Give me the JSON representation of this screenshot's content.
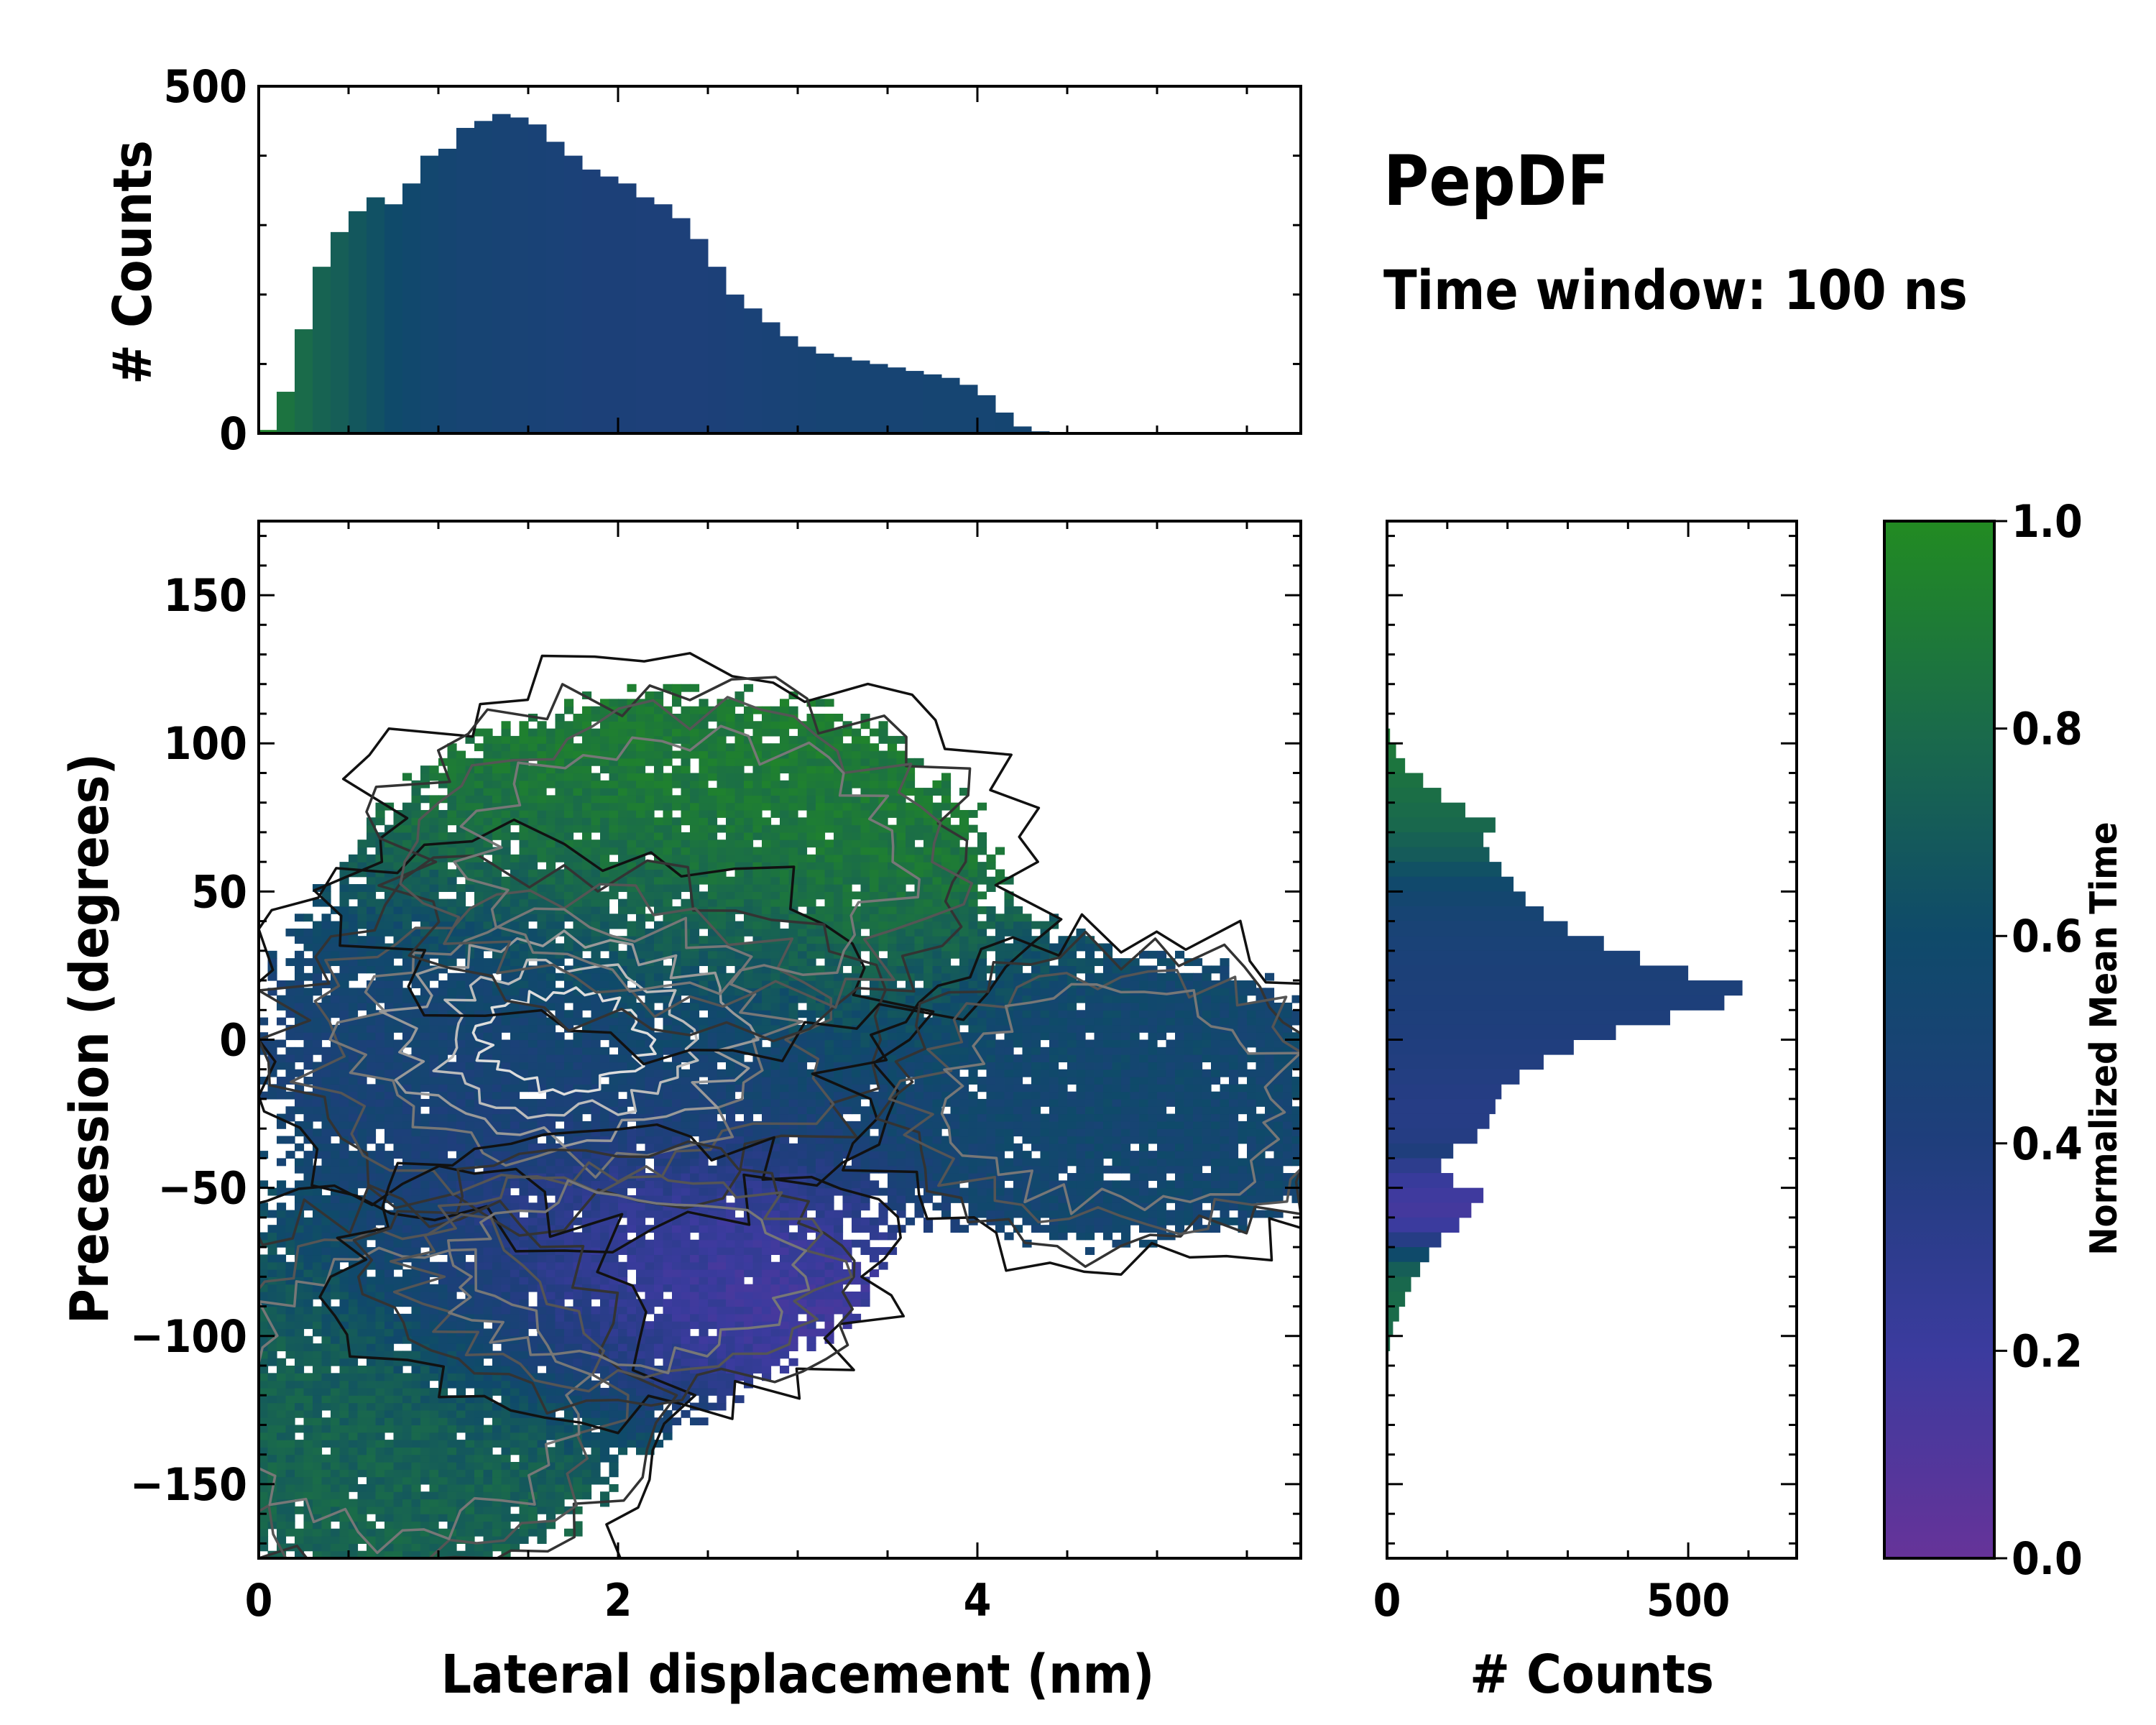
{
  "chart_data": {
    "type": "heatmap",
    "title": "PepDF",
    "subtitle": "Time window: 100 ns",
    "main": {
      "xlabel": "Lateral displacement (nm)",
      "ylabel": "Precession (degrees)",
      "xlim": [
        0,
        5.8
      ],
      "ylim": [
        -175,
        175
      ],
      "xticks": [
        0,
        2,
        4
      ],
      "xtick_labels": [
        "0",
        "2",
        "4"
      ],
      "yticks": [
        150,
        100,
        50,
        0,
        -50,
        -100,
        -150
      ],
      "ytick_labels": [
        "150",
        "100",
        "50",
        "0",
        "−50",
        "−100",
        "−150"
      ],
      "description_clusters": [
        {
          "x": 1.7,
          "y": 0,
          "spread_x": 1.0,
          "spread_y": 35,
          "time": 0.45
        },
        {
          "x": 2.4,
          "y": 60,
          "spread_x": 1.0,
          "spread_y": 35,
          "time": 0.9
        },
        {
          "x": 0.8,
          "y": -120,
          "spread_x": 0.8,
          "spread_y": 40,
          "time": 0.75
        },
        {
          "x": 2.0,
          "y": -80,
          "spread_x": 0.8,
          "spread_y": 25,
          "time": 0.15
        },
        {
          "x": 4.8,
          "y": -20,
          "spread_x": 0.8,
          "spread_y": 30,
          "time": 0.55
        }
      ]
    },
    "top_hist": {
      "ylabel": "# Counts",
      "ylim": [
        0,
        500
      ],
      "yticks": [
        0,
        500
      ],
      "ytick_labels": [
        "0",
        "500"
      ],
      "x_start": 0.0,
      "bin_width": 0.1,
      "values": [
        5,
        60,
        150,
        240,
        290,
        320,
        340,
        330,
        360,
        400,
        410,
        440,
        450,
        460,
        455,
        445,
        420,
        400,
        380,
        370,
        360,
        340,
        330,
        310,
        280,
        240,
        200,
        180,
        160,
        140,
        125,
        115,
        110,
        105,
        100,
        95,
        90,
        85,
        80,
        70,
        55,
        30,
        10,
        3
      ],
      "times": [
        0.95,
        0.85,
        0.8,
        0.75,
        0.72,
        0.68,
        0.64,
        0.6,
        0.57,
        0.55,
        0.52,
        0.5,
        0.5,
        0.49,
        0.48,
        0.47,
        0.46,
        0.45,
        0.44,
        0.44,
        0.44,
        0.43,
        0.43,
        0.43,
        0.43,
        0.44,
        0.45,
        0.46,
        0.47,
        0.48,
        0.49,
        0.5,
        0.5,
        0.5,
        0.5,
        0.5,
        0.5,
        0.51,
        0.51,
        0.51,
        0.51,
        0.52,
        0.52,
        0.52
      ]
    },
    "right_hist": {
      "xlabel": "# Counts",
      "xlim": [
        0,
        680
      ],
      "xticks": [
        0,
        500
      ],
      "xtick_labels": [
        "0",
        "500"
      ],
      "y_start": 105,
      "bin_width": -5,
      "values": [
        5,
        15,
        30,
        60,
        90,
        130,
        180,
        160,
        170,
        190,
        210,
        230,
        260,
        300,
        360,
        420,
        500,
        590,
        560,
        470,
        380,
        310,
        260,
        220,
        190,
        180,
        170,
        150,
        110,
        90,
        110,
        160,
        140,
        120,
        90,
        70,
        55,
        40,
        30,
        20,
        10,
        5,
        2,
        0,
        0,
        0,
        0,
        0,
        0,
        0,
        0,
        0,
        0,
        0,
        0
      ],
      "times": [
        0.9,
        0.88,
        0.86,
        0.84,
        0.82,
        0.8,
        0.78,
        0.74,
        0.7,
        0.64,
        0.58,
        0.54,
        0.5,
        0.48,
        0.46,
        0.45,
        0.44,
        0.43,
        0.42,
        0.41,
        0.4,
        0.39,
        0.38,
        0.37,
        0.36,
        0.35,
        0.35,
        0.36,
        0.4,
        0.3,
        0.22,
        0.18,
        0.16,
        0.2,
        0.35,
        0.6,
        0.72,
        0.78,
        0.8,
        0.8,
        0.8,
        0.8,
        0.8,
        0.8,
        0.8,
        0.8,
        0.8,
        0.8,
        0.8,
        0.8,
        0.8,
        0.8,
        0.8,
        0.8,
        0.8
      ]
    },
    "colorbar": {
      "label": "Normalized Mean Time",
      "range": [
        0.0,
        1.0
      ],
      "ticks": [
        1.0,
        0.8,
        0.6,
        0.4,
        0.2,
        0.0
      ],
      "tick_labels": [
        "1.0",
        "0.8",
        "0.6",
        "0.4",
        "0.2",
        "0.0"
      ],
      "colors": [
        "#663399",
        "#3b3b9e",
        "#1f3e7c",
        "#0f4a6a",
        "#1a6b4a",
        "#228b22"
      ]
    }
  }
}
